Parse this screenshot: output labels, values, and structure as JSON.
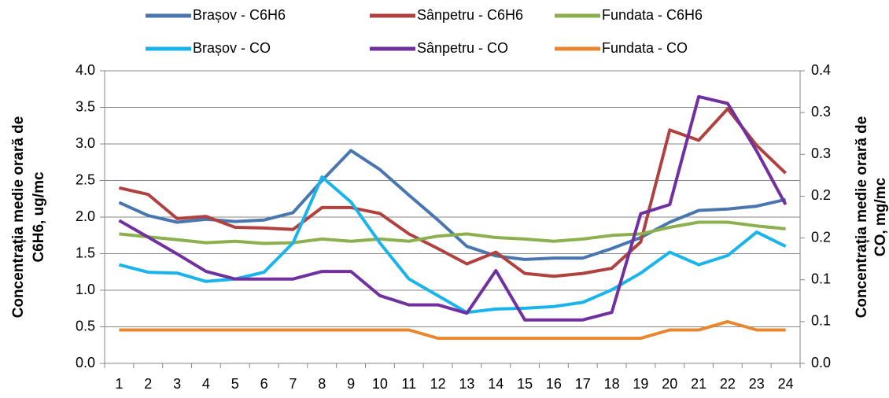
{
  "chart_data": {
    "type": "line",
    "categories": [
      1,
      2,
      3,
      4,
      5,
      6,
      7,
      8,
      9,
      10,
      11,
      12,
      13,
      14,
      15,
      16,
      17,
      18,
      19,
      20,
      21,
      22,
      23,
      24
    ],
    "ylabel": [
      "Concentrația medie orară de",
      "C6H6, ug/mc"
    ],
    "y2label": [
      "Concentrația medie orară de",
      "CO, mg/mc"
    ],
    "ylim": [
      0,
      4
    ],
    "yticks": [
      {
        "value": 0,
        "label": "0.0"
      },
      0.5,
      {
        "value": 1,
        "label": "1.0"
      },
      1.5,
      {
        "value": 2,
        "label": "2.0"
      },
      2.5,
      {
        "value": 3,
        "label": "3.0"
      },
      3.5,
      {
        "value": 4,
        "label": "4.0"
      }
    ],
    "y2lim": [
      0,
      0.35
    ],
    "y2ticks": [
      {
        "value": 0,
        "label": "0.0"
      },
      {
        "value": 0.05,
        "label": "0.1"
      },
      0.1,
      {
        "value": 0.15,
        "label": "0.2"
      },
      0.2,
      {
        "value": 0.25,
        "label": "0.3"
      },
      0.3,
      {
        "value": 0.35,
        "label": "0.4"
      }
    ],
    "grid": true,
    "legend": "top",
    "series": [
      {
        "name": "Brașov - C6H6",
        "color": "#4a76b0",
        "values": [
          2.2,
          2.02,
          1.93,
          1.97,
          1.94,
          1.96,
          2.06,
          2.5,
          2.91,
          2.65,
          2.3,
          1.96,
          1.6,
          1.47,
          1.42,
          1.44,
          1.44,
          1.57,
          1.72,
          1.93,
          2.09,
          2.11,
          2.15,
          2.24
        ]
      },
      {
        "name": "Sânpetru - C6H6",
        "color": "#b0413e",
        "values": [
          2.4,
          2.31,
          1.98,
          2.01,
          1.86,
          1.85,
          1.83,
          2.13,
          2.13,
          2.05,
          1.77,
          1.57,
          1.36,
          1.52,
          1.23,
          1.19,
          1.23,
          1.3,
          1.66,
          3.19,
          3.05,
          3.48,
          2.98,
          2.6
        ]
      },
      {
        "name": "Fundata - C6H6",
        "color": "#8bb04d",
        "values": [
          1.77,
          1.73,
          1.69,
          1.65,
          1.67,
          1.64,
          1.65,
          1.7,
          1.67,
          1.7,
          1.67,
          1.74,
          1.77,
          1.72,
          1.7,
          1.67,
          1.7,
          1.75,
          1.77,
          1.86,
          1.93,
          1.93,
          1.88,
          1.84
        ]
      },
      {
        "name": "Brașov - CO",
        "color": "#1ab4ec",
        "axis": "y2",
        "values": [
          0.118,
          0.109,
          0.108,
          0.098,
          0.101,
          0.109,
          0.144,
          0.223,
          0.193,
          0.144,
          0.101,
          0.081,
          0.061,
          0.065,
          0.066,
          0.068,
          0.073,
          0.088,
          0.108,
          0.133,
          0.118,
          0.129,
          0.157,
          0.14
        ]
      },
      {
        "name": "Sânpetru - CO",
        "color": "#7030a0",
        "axis": "y2",
        "values": [
          0.171,
          0.151,
          0.131,
          0.11,
          0.101,
          0.101,
          0.101,
          0.11,
          0.11,
          0.081,
          0.07,
          0.07,
          0.06,
          0.111,
          0.052,
          0.052,
          0.052,
          0.061,
          0.179,
          0.19,
          0.319,
          0.311,
          0.254,
          0.19
        ]
      },
      {
        "name": "Fundata - CO",
        "color": "#e8872f",
        "axis": "y2",
        "values": [
          0.04,
          0.04,
          0.04,
          0.04,
          0.04,
          0.04,
          0.04,
          0.04,
          0.04,
          0.04,
          0.04,
          0.03,
          0.03,
          0.03,
          0.03,
          0.03,
          0.03,
          0.03,
          0.03,
          0.04,
          0.04,
          0.05,
          0.04,
          0.04
        ]
      }
    ]
  }
}
